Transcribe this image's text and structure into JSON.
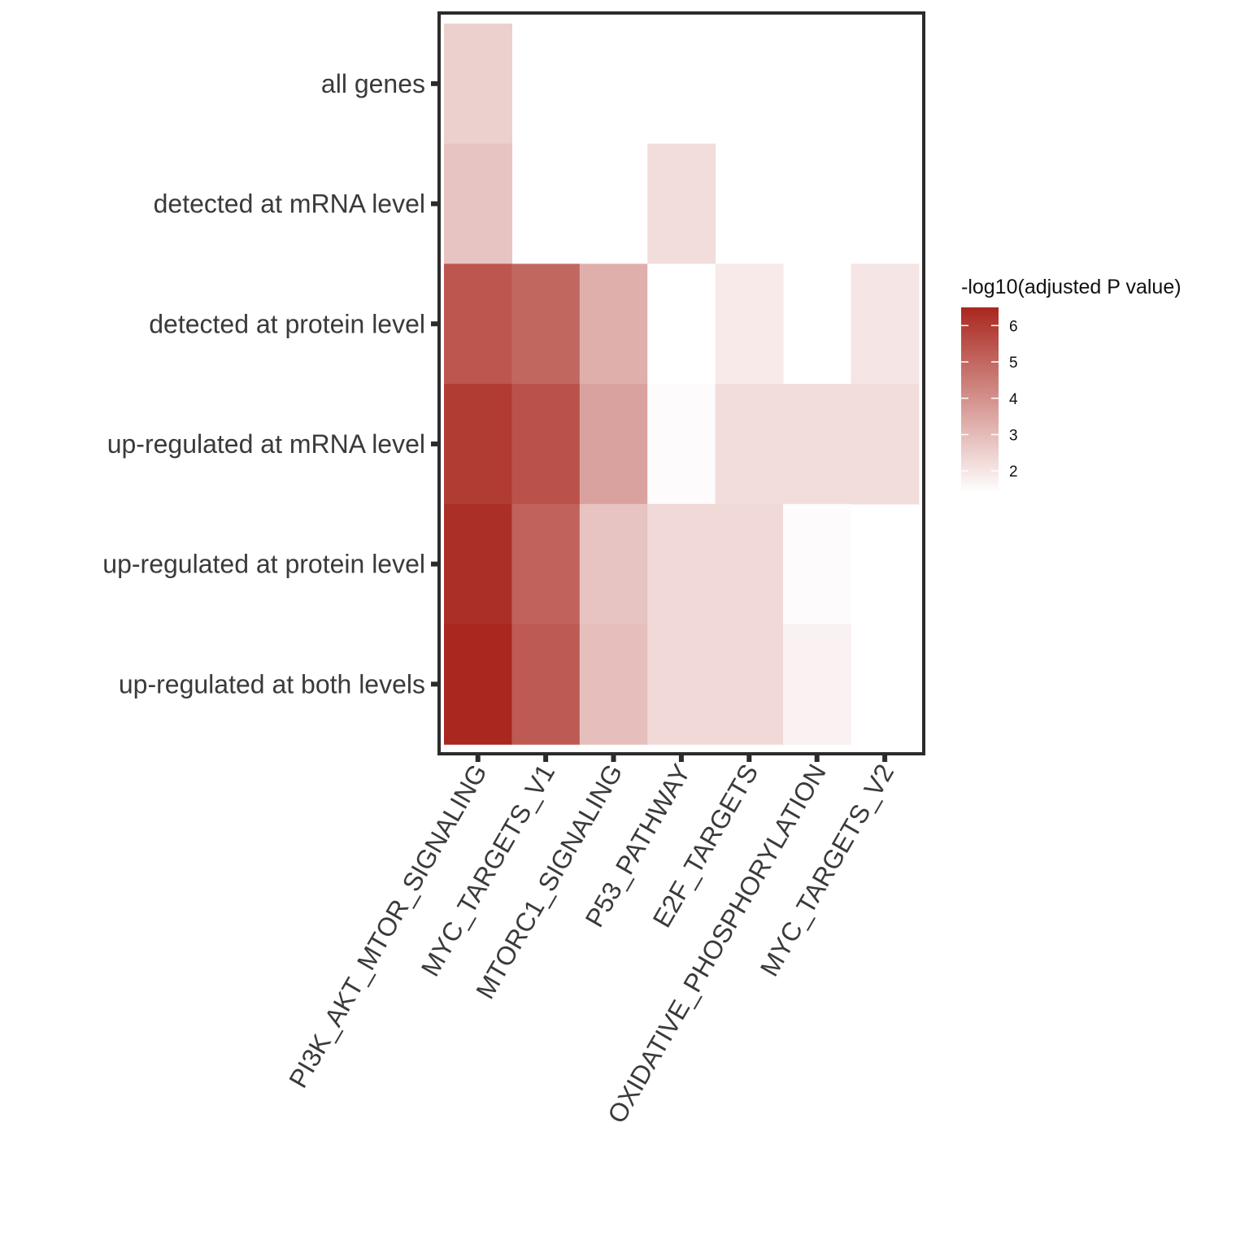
{
  "chart_data": {
    "type": "heatmap",
    "title": "",
    "xlabel": "",
    "ylabel": "",
    "rows": [
      "all genes",
      "detected at mRNA level",
      "detected at protein level",
      "up-regulated at mRNA level",
      "up-regulated at protein level",
      "up-regulated at both levels"
    ],
    "columns": [
      "PI3K_AKT_MTOR_SIGNALING",
      "MYC_TARGETS_V1",
      "MTORC1_SIGNALING",
      "P53_PATHWAY",
      "E2F_TARGETS",
      "OXIDATIVE_PHOSPHORYLATION",
      "MYC_TARGETS_V2"
    ],
    "values": [
      [
        2.5,
        null,
        null,
        null,
        null,
        null,
        null
      ],
      [
        2.8,
        null,
        null,
        2.2,
        null,
        null,
        null
      ],
      [
        5.4,
        5.0,
        3.3,
        1.4,
        1.9,
        null,
        2.0
      ],
      [
        6.0,
        5.5,
        3.6,
        1.5,
        2.2,
        2.2,
        2.2
      ],
      [
        6.3,
        5.1,
        2.8,
        2.3,
        2.3,
        1.5,
        null
      ],
      [
        6.5,
        5.3,
        2.9,
        2.3,
        2.3,
        1.7,
        null
      ]
    ],
    "legend": {
      "title": "-log10(adjusted P value)",
      "ticks": [
        2,
        3,
        4,
        5,
        6
      ],
      "range": [
        1.4,
        6.5
      ],
      "low_color": "#ffffff",
      "high_color": "#a9271e",
      "position": "right"
    }
  }
}
